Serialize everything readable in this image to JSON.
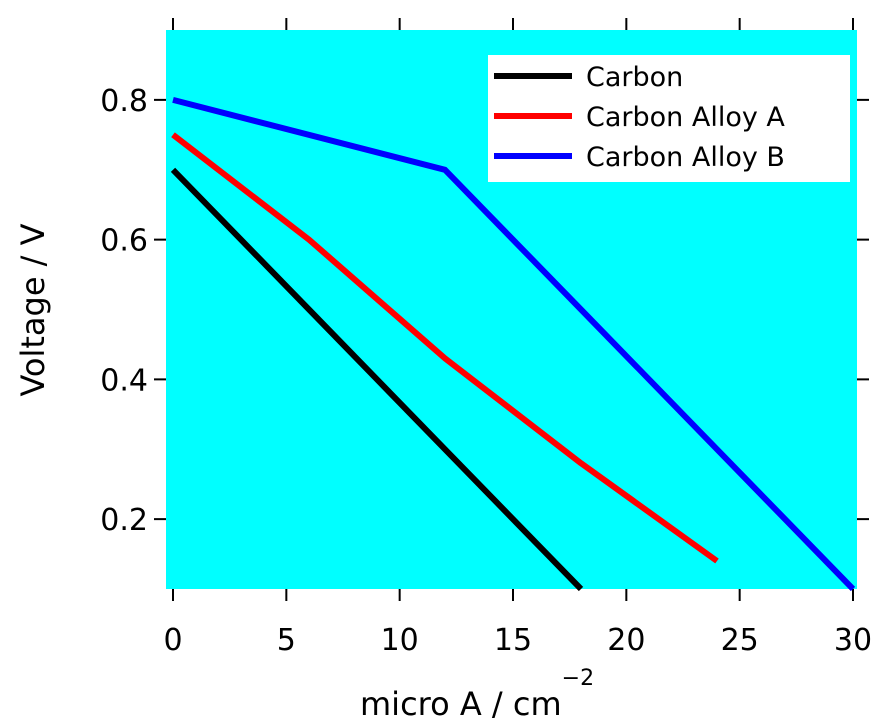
{
  "chart_data": {
    "type": "line",
    "title": "",
    "xlabel": "micro A / cm",
    "xlabel_superscript": "−2",
    "ylabel": "Voltage / V",
    "xlim": [
      0,
      30
    ],
    "ylim": [
      0.1,
      0.9
    ],
    "x_ticks": [
      0,
      5,
      10,
      15,
      20,
      25,
      30
    ],
    "x_tick_labels": [
      "0",
      "5",
      "10",
      "15",
      "20",
      "25",
      "30"
    ],
    "y_ticks": [
      0.2,
      0.4,
      0.6,
      0.8
    ],
    "y_tick_labels": [
      "0.2",
      "0.4",
      "0.6",
      "0.8"
    ],
    "grid": false,
    "background": "#00ffff",
    "legend_position": "top-right",
    "series": [
      {
        "name": "Carbon",
        "color": "#000000",
        "x": [
          0,
          6,
          12,
          18
        ],
        "y": [
          0.7,
          0.5,
          0.3,
          0.1
        ]
      },
      {
        "name": "Carbon Alloy A",
        "color": "#ff0000",
        "x": [
          0,
          6,
          12,
          18,
          24
        ],
        "y": [
          0.75,
          0.6,
          0.43,
          0.28,
          0.14
        ]
      },
      {
        "name": "Carbon Alloy B",
        "color": "#0000ff",
        "x": [
          0,
          12,
          18,
          24,
          30
        ],
        "y": [
          0.8,
          0.7,
          0.5,
          0.3,
          0.1
        ]
      }
    ]
  }
}
